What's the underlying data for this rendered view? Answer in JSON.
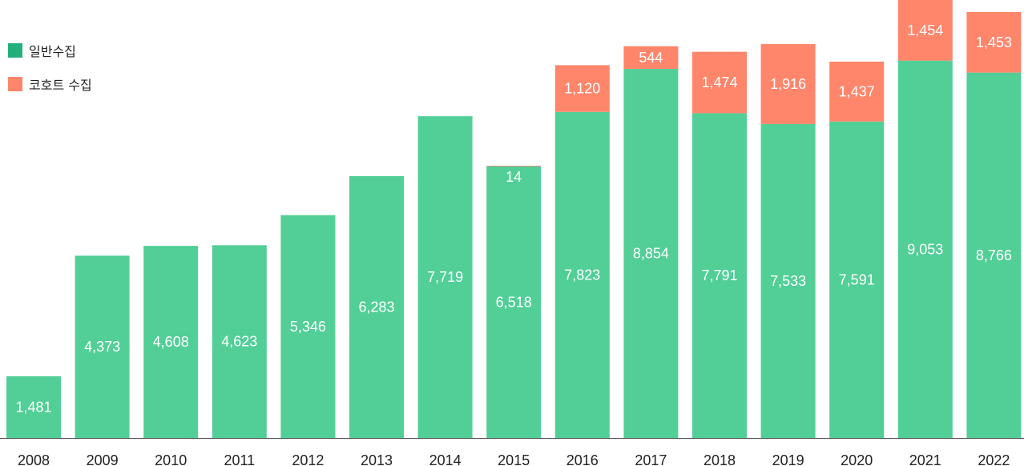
{
  "chart_data": {
    "type": "bar",
    "stacked": true,
    "categories": [
      "2008",
      "2009",
      "2010",
      "2011",
      "2012",
      "2013",
      "2014",
      "2015",
      "2016",
      "2017",
      "2018",
      "2019",
      "2020",
      "2021",
      "2022"
    ],
    "series": [
      {
        "name": "일반수집",
        "color": "#52CE97",
        "values": [
          1481,
          4373,
          4608,
          4623,
          5346,
          6283,
          7719,
          6518,
          7823,
          8854,
          7791,
          7533,
          7591,
          9053,
          8766
        ]
      },
      {
        "name": "코호트 수집",
        "color": "#FF856B",
        "values": [
          0,
          0,
          0,
          0,
          0,
          0,
          0,
          14,
          1120,
          544,
          1474,
          1916,
          1437,
          1454,
          1453
        ]
      }
    ],
    "data_labels": {
      "series0": [
        "1,481",
        "4,373",
        "4,608",
        "4,623",
        "5,346",
        "6,283",
        "7,719",
        "6,518",
        "7,823",
        "8,854",
        "7,791",
        "7,533",
        "7,591",
        "9,053",
        "8,766"
      ],
      "series1": [
        "",
        "",
        "",
        "",
        "",
        "",
        "",
        "14",
        "1,120",
        "544",
        "1,474",
        "1,916",
        "1,437",
        "1,454",
        "1,453"
      ]
    },
    "ylim": [
      0,
      10507
    ],
    "grid": false,
    "legend_position": "top-left",
    "legend_swatch_colors": [
      "#23B07D",
      "#FF856B"
    ]
  }
}
